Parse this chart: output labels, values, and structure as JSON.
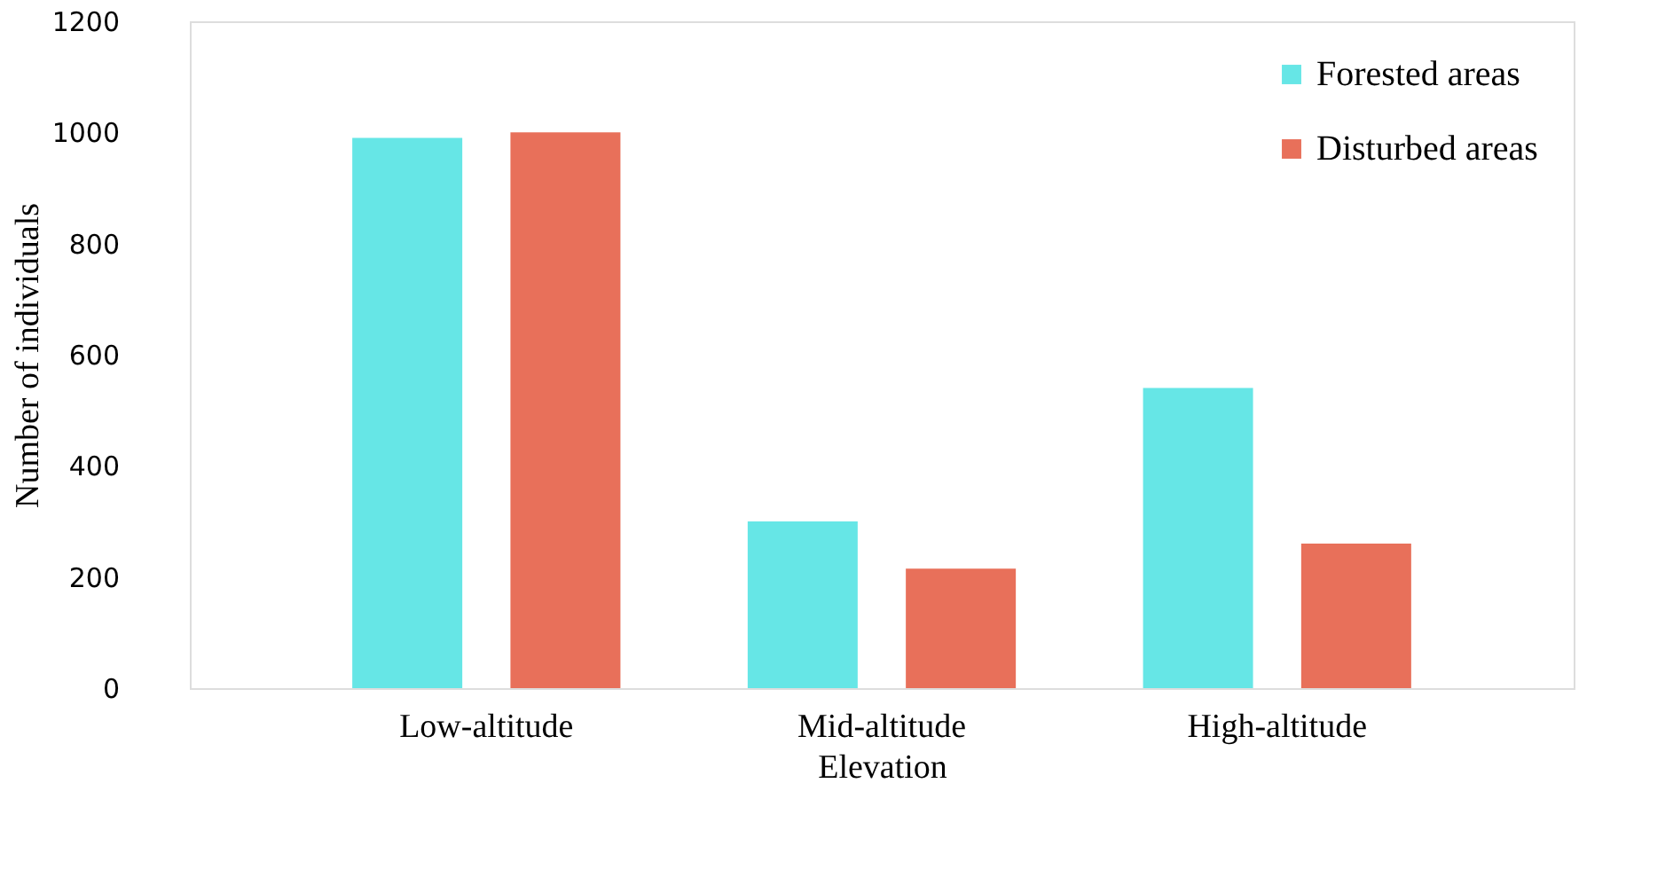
{
  "chart_data": {
    "type": "bar",
    "xlabel": "Elevation",
    "ylabel": "Number of individuals",
    "categories": [
      "Low-altitude",
      "Mid-altitude",
      "High-altitude"
    ],
    "series": [
      {
        "name": "Forested areas",
        "color": "#66e6e6",
        "values": [
          990,
          300,
          540
        ]
      },
      {
        "name": "Disturbed areas",
        "color": "#e8705a",
        "values": [
          1000,
          215,
          260
        ]
      }
    ],
    "ylim": [
      0,
      1200
    ],
    "yticks": [
      0,
      200,
      400,
      600,
      800,
      1000,
      1200
    ],
    "grid": false,
    "legend": "top right"
  }
}
